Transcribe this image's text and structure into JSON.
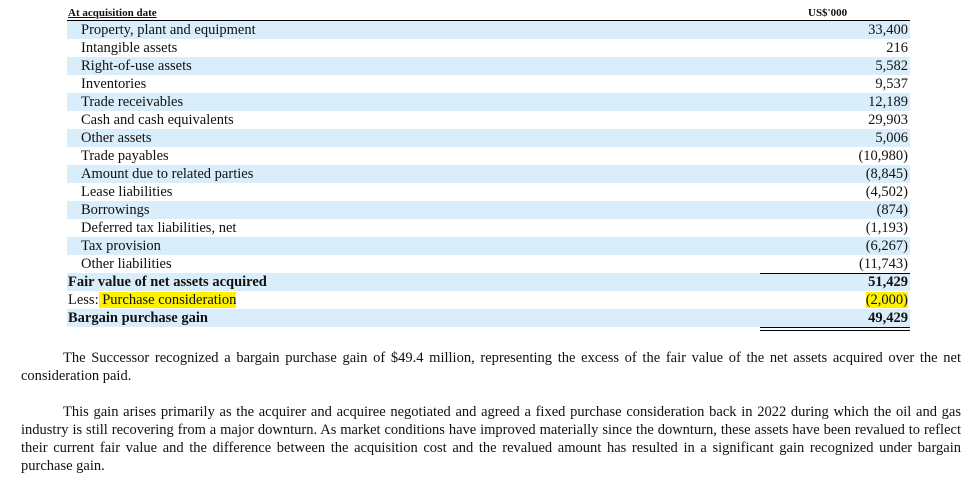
{
  "table": {
    "header_label": "At acquisition date",
    "unit_label": "US$'000",
    "rows": [
      {
        "label": "Property, plant and equipment",
        "value": "33,400"
      },
      {
        "label": "Intangible assets",
        "value": "216"
      },
      {
        "label": "Right-of-use assets",
        "value": "5,582"
      },
      {
        "label": "Inventories",
        "value": "9,537"
      },
      {
        "label": "Trade receivables",
        "value": "12,189"
      },
      {
        "label": "Cash and cash equivalents",
        "value": "29,903"
      },
      {
        "label": "Other assets",
        "value": "5,006"
      },
      {
        "label": "Trade payables",
        "value": "(10,980)"
      },
      {
        "label": "Amount due to related parties",
        "value": "(8,845)"
      },
      {
        "label": "Lease liabilities",
        "value": "(4,502)"
      },
      {
        "label": "Borrowings",
        "value": "(874)"
      },
      {
        "label": "Deferred tax liabilities, net",
        "value": "(1,193)"
      },
      {
        "label": "Tax provision",
        "value": "(6,267)"
      },
      {
        "label": "Other liabilities",
        "value": "(11,743)"
      }
    ],
    "fair_value": {
      "label": "Fair value of net assets acquired",
      "value": "51,429"
    },
    "less": {
      "prefix": "Less:",
      "label": " Purchase consideration",
      "value": "(2,000)"
    },
    "bargain": {
      "label": "Bargain purchase gain",
      "value": "49,429"
    },
    "highlight_color": "#fff200",
    "shade_color": "#d9eefa"
  },
  "paragraphs": [
    "The Successor recognized a bargain purchase gain of $49.4 million, representing the excess of the fair value of the net assets acquired over the net consideration paid.",
    "This gain arises primarily as the acquirer and acquiree negotiated and agreed a fixed purchase consideration back in 2022 during which the oil and gas industry is still recovering from a major downturn. As market conditions have improved materially since the downturn, these assets have been revalued to reflect their current fair value and the difference between the acquisition cost and the revalued amount has resulted in a significant gain recognized under bargain purchase gain."
  ]
}
